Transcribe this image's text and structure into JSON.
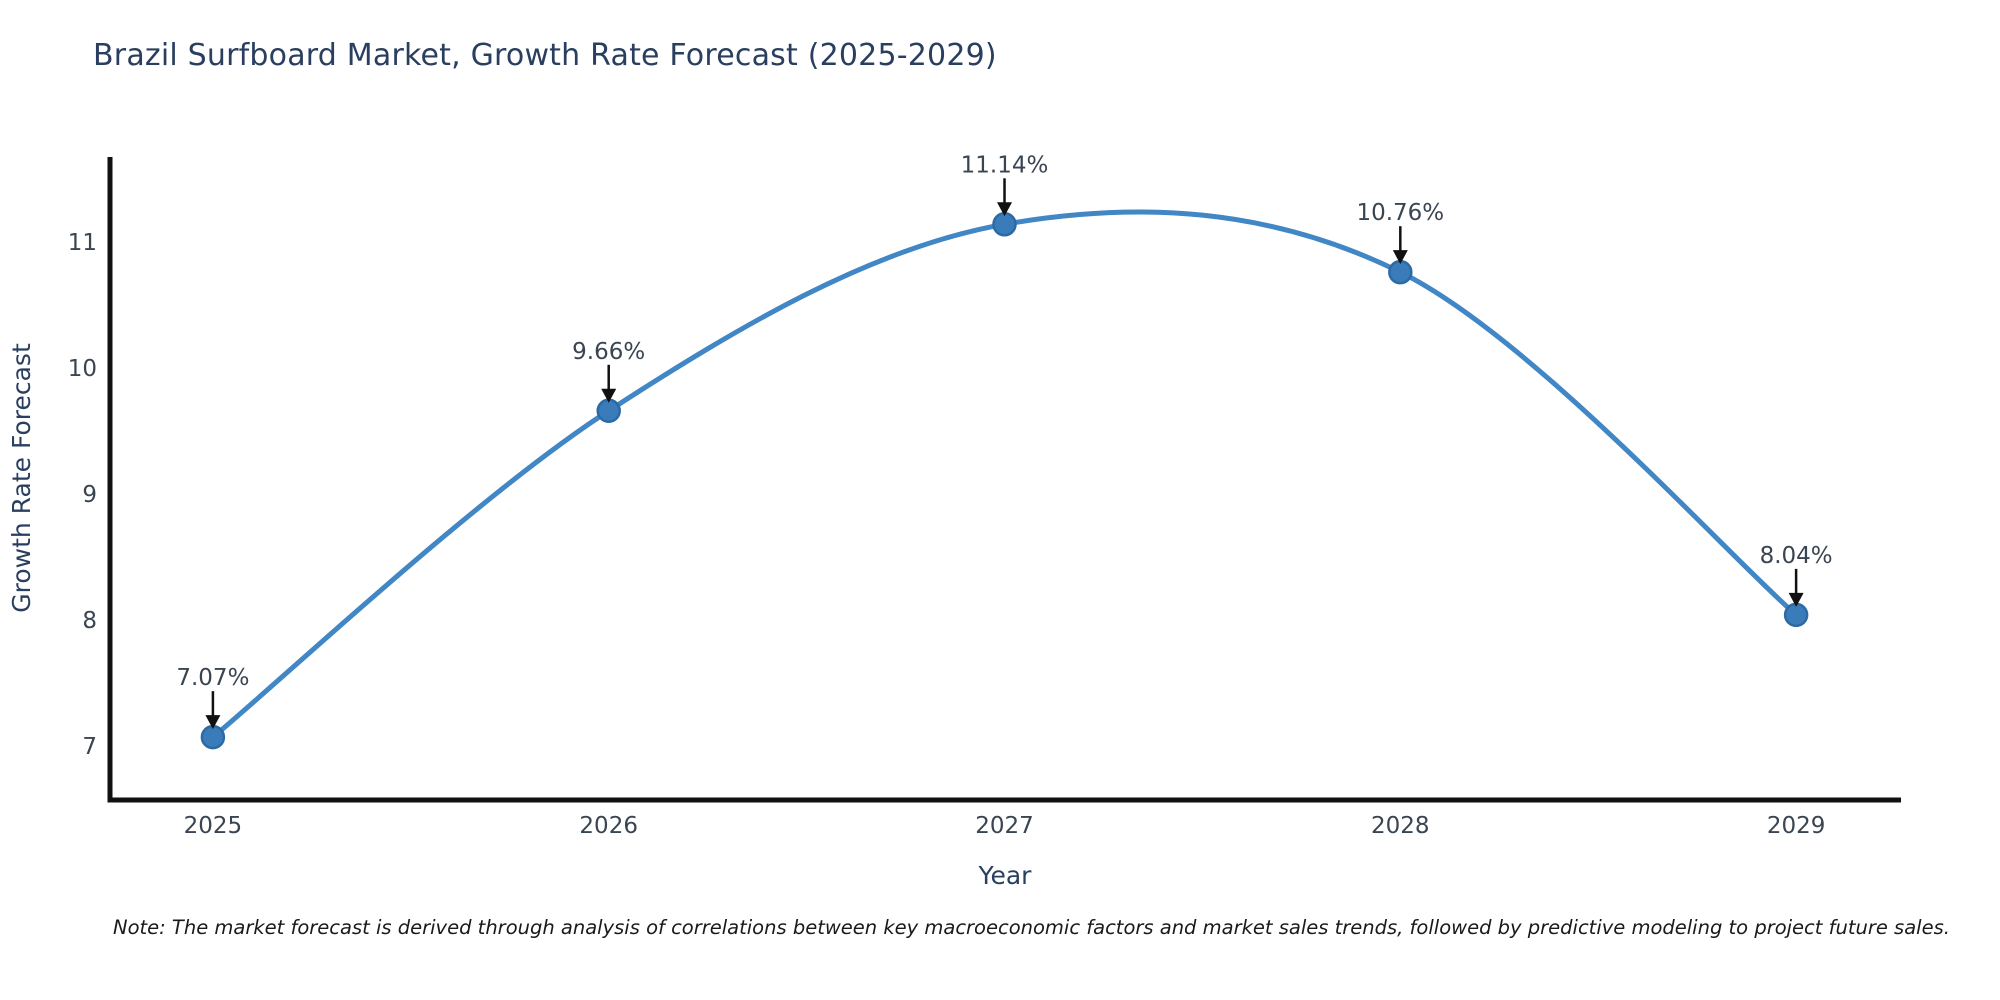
{
  "chart": {
    "title": "Brazil Surfboard Market, Growth Rate Forecast (2025-2029)",
    "note": "Note: The market forecast is derived through analysis of correlations between key macroeconomic factors and market sales trends, followed by predictive modeling to project future sales."
  },
  "chart_data": {
    "type": "line",
    "title": "Brazil Surfboard Market, Growth Rate Forecast (2025-2029)",
    "xlabel": "Year",
    "ylabel": "Growth Rate Forecast",
    "x": [
      2025,
      2026,
      2027,
      2028,
      2029
    ],
    "x_tick_labels": [
      "2025",
      "2026",
      "2027",
      "2028",
      "2029"
    ],
    "series": [
      {
        "name": "Growth Rate Forecast",
        "values": [
          7.07,
          9.66,
          11.14,
          10.76,
          8.04
        ]
      }
    ],
    "point_labels": [
      "7.07%",
      "9.66%",
      "11.14%",
      "10.76%",
      "8.04%"
    ],
    "yticks": [
      7,
      8,
      9,
      10,
      11
    ],
    "xlim": [
      2024.74,
      2029.265
    ],
    "ylim": [
      6.571,
      11.674
    ],
    "grid": false,
    "legend": "none",
    "line_shape": "spline",
    "markers": true,
    "annotations_style": "value-above-with-down-arrow",
    "colors": {
      "line": "#4186c5",
      "marker_fill": "#3a7cba",
      "marker_edge": "#2c6aa6",
      "annotation_arrow": "#111111",
      "annotation_text": "#3a4552",
      "tick_text": "#3a4552",
      "axis_title_text": "#2a3f5f",
      "title_text": "#2a3f5f",
      "note_text": "#1a1a1a",
      "spine": "#111111",
      "background": "#ffffff"
    }
  }
}
